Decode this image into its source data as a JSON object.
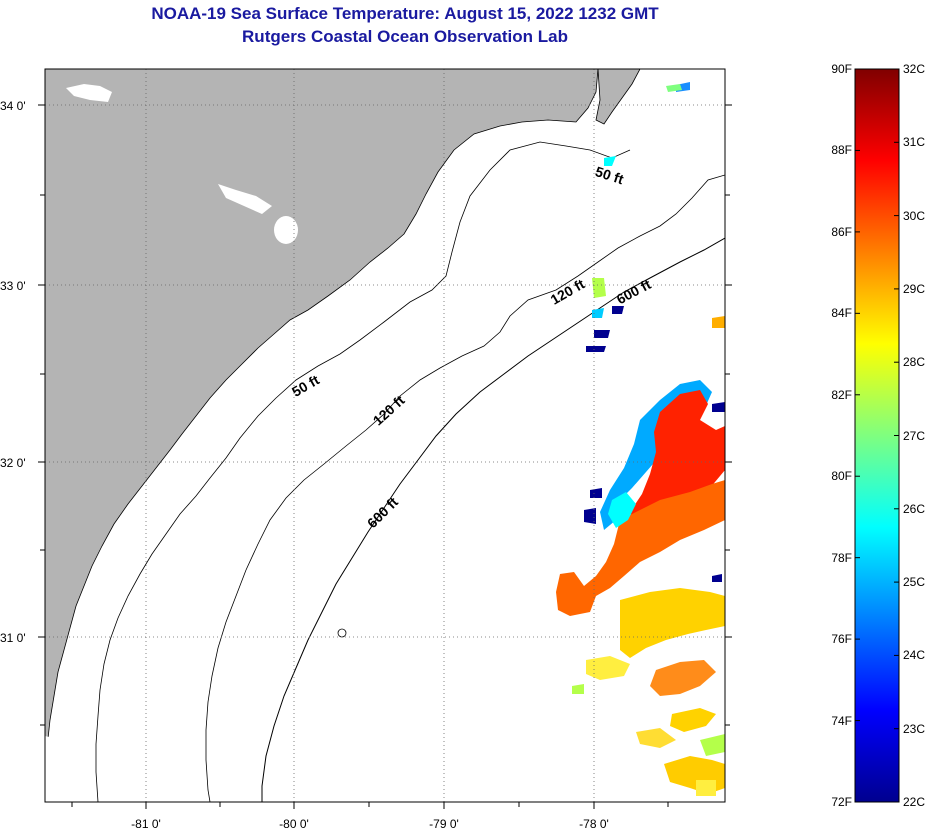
{
  "title": "NOAA-19 Sea Surface Temperature:  August 15, 2022 1232 GMT",
  "subtitle": "Rutgers Coastal Ocean Observation Lab",
  "map": {
    "lat_labels": [
      "34 0'",
      "33 0'",
      "32 0'",
      "31 0'"
    ],
    "lon_labels": [
      "-81 0'",
      "-80 0'",
      "-79 0'",
      "-78 0'"
    ],
    "depth_contours": [
      {
        "label": "50 ft"
      },
      {
        "label": "50 ft"
      },
      {
        "label": "120 ft"
      },
      {
        "label": "120 ft"
      },
      {
        "label": "600 ft"
      },
      {
        "label": "600 ft"
      }
    ],
    "colors": {
      "land": "#b4b4b4",
      "ocean": "#ffffff",
      "grid": "#555555"
    }
  },
  "colorbar": {
    "fahrenheit_labels": [
      "90F",
      "88F",
      "86F",
      "84F",
      "82F",
      "80F",
      "78F",
      "76F",
      "74F",
      "72F"
    ],
    "celsius_labels": [
      "32C",
      "31C",
      "30C",
      "29C",
      "28C",
      "27C",
      "26C",
      "25C",
      "24C",
      "23C",
      "22C"
    ],
    "fahrenheit_range": [
      72,
      90
    ],
    "celsius_range": [
      22,
      32
    ]
  }
}
